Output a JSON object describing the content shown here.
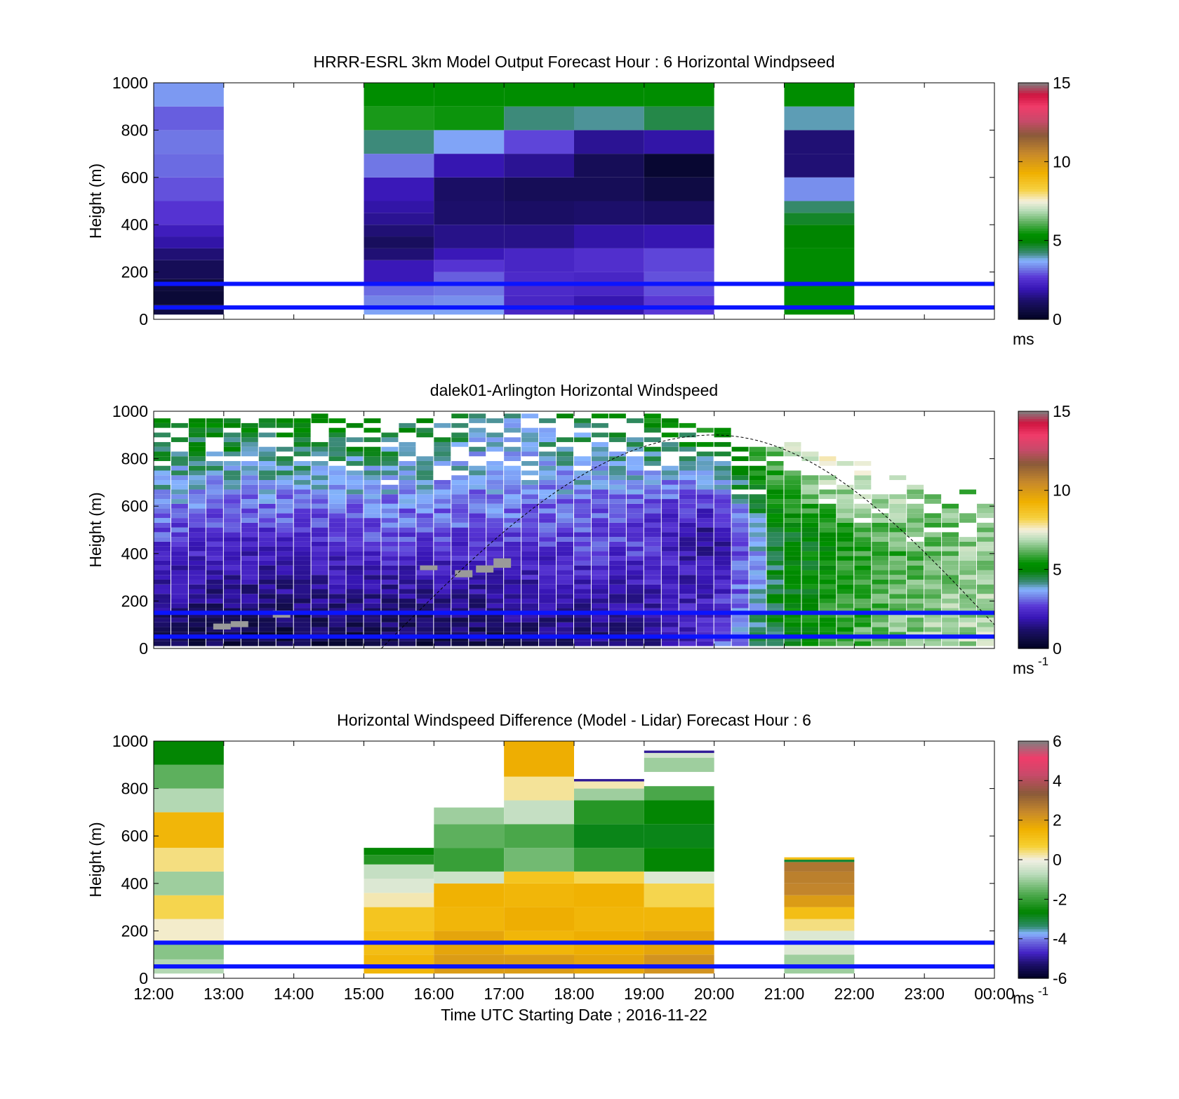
{
  "chart_data": [
    {
      "type": "heatmap",
      "title": "HRRR-ESRL 3km Model Output   Forecast Hour : 6 Horizontal Windpseed",
      "ylabel": "Height (m)",
      "xlabel": "",
      "x_ticks": [
        "12:00",
        "13:00",
        "14:00",
        "15:00",
        "16:00",
        "17:00",
        "18:00",
        "19:00",
        "20:00",
        "21:00",
        "22:00",
        "23:00",
        "00:00"
      ],
      "y_ticks": [
        0,
        200,
        400,
        600,
        800,
        1000
      ],
      "ylim": [
        0,
        1000
      ],
      "colorbar": {
        "ticks": [
          0,
          5,
          10,
          15
        ],
        "range": [
          0,
          15
        ],
        "unit": "ms",
        "unit_sup": ""
      },
      "reference_lines_m": [
        150,
        50
      ],
      "reference_line_color": "#0a14ff",
      "columns": [
        {
          "hour": 0,
          "bins": [
            [
              20,
              60,
              0.6
            ],
            [
              60,
              120,
              0.4
            ],
            [
              120,
              170,
              0.5
            ],
            [
              170,
              250,
              0.9
            ],
            [
              250,
              300,
              1.3
            ],
            [
              300,
              350,
              1.8
            ],
            [
              350,
              400,
              2.1
            ],
            [
              400,
              500,
              2.6
            ],
            [
              500,
              600,
              2.9
            ],
            [
              600,
              700,
              3.1
            ],
            [
              700,
              800,
              3.2
            ],
            [
              800,
              900,
              3.0
            ],
            [
              900,
              1000,
              3.5
            ]
          ]
        },
        {
          "hour": 3,
          "bins": [
            [
              20,
              50,
              3.6
            ],
            [
              50,
              100,
              3.3
            ],
            [
              100,
              150,
              3.1
            ],
            [
              150,
              250,
              2.0
            ],
            [
              250,
              300,
              1.3
            ],
            [
              300,
              350,
              1.0
            ],
            [
              350,
              400,
              1.3
            ],
            [
              400,
              450,
              1.6
            ],
            [
              450,
              500,
              1.8
            ],
            [
              500,
              600,
              2.0
            ],
            [
              600,
              700,
              3.2
            ],
            [
              700,
              800,
              4.2
            ],
            [
              800,
              900,
              5.6
            ],
            [
              900,
              1000,
              5.3
            ]
          ]
        },
        {
          "hour": 4,
          "bins": [
            [
              20,
              50,
              3.6
            ],
            [
              50,
              100,
              3.4
            ],
            [
              100,
              150,
              3.2
            ],
            [
              150,
              200,
              3.0
            ],
            [
              200,
              250,
              2.6
            ],
            [
              250,
              300,
              2.0
            ],
            [
              300,
              400,
              1.5
            ],
            [
              400,
              500,
              1.2
            ],
            [
              500,
              600,
              1.1
            ],
            [
              600,
              700,
              1.9
            ],
            [
              700,
              800,
              3.6
            ],
            [
              800,
              900,
              5.5
            ],
            [
              900,
              1000,
              5.3
            ]
          ]
        },
        {
          "hour": 5,
          "bins": [
            [
              20,
              100,
              2.3
            ],
            [
              100,
              200,
              2.4
            ],
            [
              200,
              300,
              2.3
            ],
            [
              300,
              400,
              1.5
            ],
            [
              400,
              500,
              1.1
            ],
            [
              500,
              600,
              0.9
            ],
            [
              600,
              700,
              1.6
            ],
            [
              700,
              800,
              2.8
            ],
            [
              800,
              900,
              4.2
            ],
            [
              900,
              1000,
              5.3
            ]
          ]
        },
        {
          "hour": 6,
          "bins": [
            [
              20,
              100,
              1.9
            ],
            [
              100,
              200,
              2.3
            ],
            [
              200,
              300,
              2.5
            ],
            [
              300,
              400,
              1.8
            ],
            [
              400,
              500,
              1.2
            ],
            [
              500,
              600,
              0.9
            ],
            [
              600,
              700,
              0.9
            ],
            [
              700,
              800,
              1.6
            ],
            [
              800,
              900,
              4.1
            ],
            [
              900,
              1000,
              5.3
            ]
          ]
        },
        {
          "hour": 7,
          "bins": [
            [
              20,
              100,
              2.7
            ],
            [
              100,
              200,
              2.9
            ],
            [
              200,
              300,
              2.8
            ],
            [
              300,
              400,
              1.9
            ],
            [
              400,
              500,
              1.1
            ],
            [
              500,
              600,
              0.6
            ],
            [
              600,
              700,
              0.3
            ],
            [
              700,
              800,
              1.8
            ],
            [
              800,
              900,
              4.5
            ],
            [
              900,
              1000,
              5.3
            ]
          ]
        },
        {
          "hour": 9,
          "bins": [
            [
              20,
              150,
              5.3
            ],
            [
              150,
              300,
              5.2
            ],
            [
              300,
              400,
              5.0
            ],
            [
              400,
              450,
              4.7
            ],
            [
              450,
              500,
              4.3
            ],
            [
              500,
              600,
              3.4
            ],
            [
              600,
              700,
              1.3
            ],
            [
              700,
              800,
              1.3
            ],
            [
              800,
              900,
              4.0
            ],
            [
              900,
              1000,
              5.3
            ]
          ]
        }
      ]
    },
    {
      "type": "heatmap",
      "title": "dalek01-Arlington  Horizontal Windspeed",
      "ylabel": "Height (m)",
      "xlabel": "",
      "x_ticks": [
        "12:00",
        "13:00",
        "14:00",
        "15:00",
        "16:00",
        "17:00",
        "18:00",
        "19:00",
        "20:00",
        "21:00",
        "22:00",
        "23:00",
        "00:00"
      ],
      "y_ticks": [
        0,
        200,
        400,
        600,
        800,
        1000
      ],
      "ylim": [
        0,
        1000
      ],
      "colorbar": {
        "ticks": [
          0,
          5,
          10,
          15
        ],
        "range": [
          0,
          15
        ],
        "unit": "ms",
        "unit_sup": "-1"
      },
      "reference_lines_m": [
        150,
        50
      ],
      "reference_line_color": "#0a14ff",
      "time_step_hours": 0.25,
      "profiles_by_hour": [
        {
          "hour": 0,
          "top_m": 1000,
          "low": 0.9,
          "mid_height_m": 420,
          "mid": 2.6,
          "top": 5.2
        },
        {
          "hour": 1,
          "top_m": 1000,
          "low": 0.6,
          "mid_height_m": 450,
          "mid": 2.4,
          "top": 5.3
        },
        {
          "hour": 2,
          "top_m": 980,
          "low": 0.6,
          "mid_height_m": 480,
          "mid": 2.6,
          "top": 5.2
        },
        {
          "hour": 3,
          "top_m": 960,
          "low": 0.7,
          "mid_height_m": 460,
          "mid": 2.7,
          "top": 5.0
        },
        {
          "hour": 4,
          "top_m": 960,
          "low": 0.8,
          "mid_height_m": 520,
          "mid": 3.0,
          "top": 4.6
        },
        {
          "hour": 5,
          "top_m": 990,
          "low": 0.9,
          "mid_height_m": 560,
          "mid": 3.1,
          "top": 4.1
        },
        {
          "hour": 6,
          "top_m": 990,
          "low": 1.2,
          "mid_height_m": 580,
          "mid": 3.2,
          "top": 4.5
        },
        {
          "hour": 7,
          "top_m": 980,
          "low": 1.5,
          "mid_height_m": 600,
          "mid": 3.0,
          "top": 5.2
        },
        {
          "hour": 8,
          "top_m": 920,
          "low": 2.6,
          "mid_height_m": 450,
          "mid": 1.4,
          "top": 5.4
        },
        {
          "hour": 9,
          "top_m": 880,
          "low": 5.0,
          "mid_height_m": 450,
          "mid": 4.8,
          "top": 7.0
        },
        {
          "hour": 10,
          "top_m": 800,
          "low": 6.0,
          "mid_height_m": 420,
          "mid": 5.6,
          "top": 7.8
        },
        {
          "hour": 11,
          "top_m": 680,
          "low": 6.8,
          "mid_height_m": 380,
          "mid": 6.2,
          "top": 6.4
        },
        {
          "hour": 12,
          "top_m": 640,
          "low": 6.8,
          "mid_height_m": 380,
          "mid": 6.8,
          "top": 6.0
        }
      ],
      "gray_patches": [
        {
          "hour": 3.8,
          "bottom_m": 330,
          "top_m": 350
        },
        {
          "hour": 4.3,
          "bottom_m": 300,
          "top_m": 330
        },
        {
          "hour": 4.6,
          "bottom_m": 320,
          "top_m": 350
        },
        {
          "hour": 4.85,
          "bottom_m": 340,
          "top_m": 380
        },
        {
          "hour": 0.85,
          "bottom_m": 80,
          "top_m": 105
        },
        {
          "hour": 1.1,
          "bottom_m": 90,
          "top_m": 115
        },
        {
          "hour": 1.7,
          "bottom_m": 130,
          "top_m": 160
        }
      ],
      "dashed_curve": {
        "start_hour": 3.25,
        "peak_hour": 8.0,
        "peak_m": 900,
        "end_hour": 12.0,
        "end_m": 100
      }
    },
    {
      "type": "heatmap",
      "title": "Horizontal Windspeed Difference (Model - Lidar) Forecast Hour : 6",
      "ylabel": "Height (m)",
      "xlabel": "Time UTC  Starting Date ; 2016-11-22",
      "x_ticks": [
        "12:00",
        "13:00",
        "14:00",
        "15:00",
        "16:00",
        "17:00",
        "18:00",
        "19:00",
        "20:00",
        "21:00",
        "22:00",
        "23:00",
        "00:00"
      ],
      "y_ticks": [
        0,
        200,
        400,
        600,
        800,
        1000
      ],
      "ylim": [
        0,
        1000
      ],
      "colorbar": {
        "ticks": [
          -6,
          -4,
          -2,
          0,
          2,
          4,
          6
        ],
        "range": [
          -6,
          6
        ],
        "unit": "ms",
        "unit_sup": "-1"
      },
      "reference_lines_m": [
        150,
        50
      ],
      "reference_line_color": "#0a14ff",
      "columns": [
        {
          "hour": 0,
          "bins": [
            [
              20,
              80,
              -0.8
            ],
            [
              80,
              150,
              -1.2
            ],
            [
              150,
              250,
              0.1
            ],
            [
              250,
              350,
              0.6
            ],
            [
              350,
              450,
              -1.0
            ],
            [
              450,
              550,
              0.4
            ],
            [
              550,
              700,
              1.4
            ],
            [
              700,
              800,
              -0.8
            ],
            [
              800,
              900,
              -1.6
            ],
            [
              900,
              1000,
              -2.6
            ]
          ]
        },
        {
          "hour": 3,
          "bins": [
            [
              20,
              100,
              1.4
            ],
            [
              100,
              200,
              1.2
            ],
            [
              200,
              300,
              1.0
            ],
            [
              300,
              360,
              0.2
            ],
            [
              360,
              420,
              -0.3
            ],
            [
              420,
              480,
              -0.6
            ],
            [
              480,
              520,
              -2.2
            ],
            [
              520,
              550,
              -2.6
            ]
          ]
        },
        {
          "hour": 4,
          "bins": [
            [
              20,
              100,
              2.0
            ],
            [
              100,
              200,
              1.8
            ],
            [
              200,
              300,
              1.4
            ],
            [
              300,
              400,
              1.5
            ],
            [
              400,
              450,
              -0.5
            ],
            [
              450,
              550,
              -2.0
            ],
            [
              550,
              650,
              -1.6
            ],
            [
              650,
              720,
              -1.0
            ]
          ]
        },
        {
          "hour": 5,
          "bins": [
            [
              20,
              100,
              2.0
            ],
            [
              100,
              200,
              1.4
            ],
            [
              200,
              300,
              1.6
            ],
            [
              300,
              400,
              1.4
            ],
            [
              400,
              450,
              1.0
            ],
            [
              450,
              550,
              -1.4
            ],
            [
              550,
              650,
              -1.8
            ],
            [
              650,
              750,
              -0.6
            ],
            [
              750,
              850,
              0.3
            ],
            [
              850,
              1000,
              1.6
            ]
          ]
        },
        {
          "hour": 6,
          "bins": [
            [
              20,
              100,
              1.8
            ],
            [
              100,
              200,
              1.6
            ],
            [
              200,
              300,
              1.4
            ],
            [
              300,
              400,
              1.5
            ],
            [
              400,
              450,
              0.6
            ],
            [
              450,
              550,
              -2.0
            ],
            [
              550,
              650,
              -2.8
            ],
            [
              650,
              750,
              -2.2
            ],
            [
              750,
              800,
              -1.0
            ],
            [
              800,
              830,
              0.2
            ],
            [
              830,
              840,
              -5.0
            ]
          ]
        },
        {
          "hour": 7,
          "bins": [
            [
              20,
              100,
              2.2
            ],
            [
              100,
              200,
              1.8
            ],
            [
              200,
              300,
              1.4
            ],
            [
              300,
              400,
              0.6
            ],
            [
              400,
              450,
              -0.3
            ],
            [
              450,
              550,
              -2.6
            ],
            [
              550,
              650,
              -2.8
            ],
            [
              650,
              750,
              -2.6
            ],
            [
              750,
              810,
              -1.8
            ],
            [
              870,
              930,
              -1.0
            ],
            [
              930,
              950,
              -0.4
            ],
            [
              950,
              960,
              -5.0
            ]
          ]
        },
        {
          "hour": 9,
          "bins": [
            [
              20,
              100,
              -1.0
            ],
            [
              100,
              200,
              -0.3
            ],
            [
              200,
              250,
              0.4
            ],
            [
              250,
              300,
              1.2
            ],
            [
              300,
              350,
              2.0
            ],
            [
              350,
              400,
              2.5
            ],
            [
              400,
              450,
              2.6
            ],
            [
              450,
              490,
              2.8
            ],
            [
              490,
              500,
              -3.0
            ],
            [
              500,
              510,
              1.2
            ]
          ]
        }
      ]
    }
  ]
}
